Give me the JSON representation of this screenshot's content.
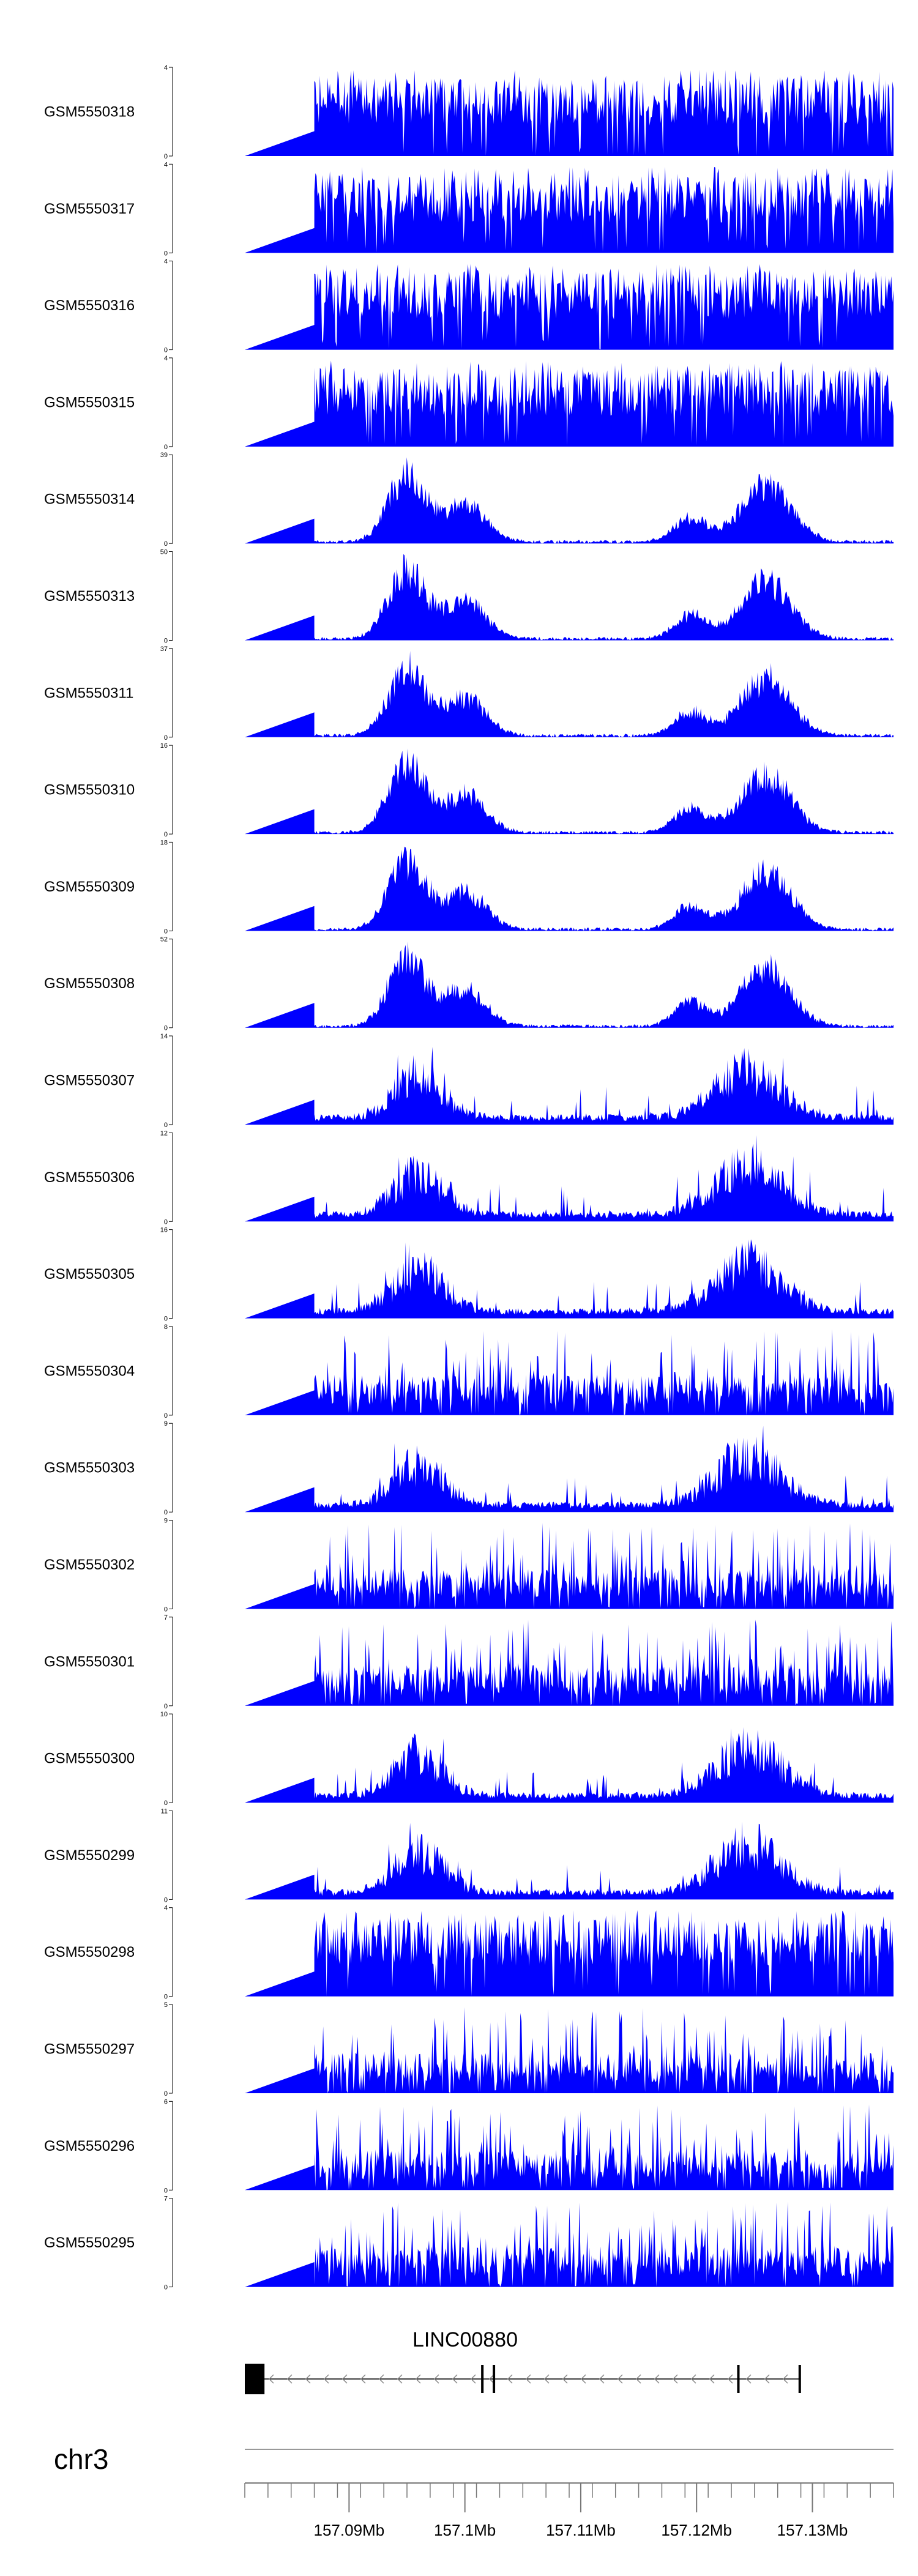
{
  "chart_data": {
    "type": "area",
    "color": "#0000ff",
    "x_range_bp": [
      157081000,
      157137000
    ],
    "signal_start_bp": 157087000,
    "tracks": [
      {
        "name": "GSM5550318",
        "ymax": 4,
        "profile": "uniform"
      },
      {
        "name": "GSM5550317",
        "ymax": 4,
        "profile": "uniform"
      },
      {
        "name": "GSM5550316",
        "ymax": 4,
        "profile": "uniform"
      },
      {
        "name": "GSM5550315",
        "ymax": 4,
        "profile": "uniform"
      },
      {
        "name": "GSM5550314",
        "ymax": 39,
        "profile": "peaks"
      },
      {
        "name": "GSM5550313",
        "ymax": 50,
        "profile": "peaks"
      },
      {
        "name": "GSM5550311",
        "ymax": 37,
        "profile": "peaks"
      },
      {
        "name": "GSM5550310",
        "ymax": 16,
        "profile": "peaks"
      },
      {
        "name": "GSM5550309",
        "ymax": 18,
        "profile": "peaks"
      },
      {
        "name": "GSM5550308",
        "ymax": 52,
        "profile": "peaks"
      },
      {
        "name": "GSM5550307",
        "ymax": 14,
        "profile": "mixed"
      },
      {
        "name": "GSM5550306",
        "ymax": 12,
        "profile": "mixed"
      },
      {
        "name": "GSM5550305",
        "ymax": 16,
        "profile": "mixed"
      },
      {
        "name": "GSM5550304",
        "ymax": 8,
        "profile": "spiky"
      },
      {
        "name": "GSM5550303",
        "ymax": 9,
        "profile": "mixed"
      },
      {
        "name": "GSM5550302",
        "ymax": 9,
        "profile": "spiky"
      },
      {
        "name": "GSM5550301",
        "ymax": 7,
        "profile": "spiky"
      },
      {
        "name": "GSM5550300",
        "ymax": 10,
        "profile": "mixed"
      },
      {
        "name": "GSM5550299",
        "ymax": 11,
        "profile": "mixed"
      },
      {
        "name": "GSM5550298",
        "ymax": 4,
        "profile": "uniform"
      },
      {
        "name": "GSM5550297",
        "ymax": 5,
        "profile": "spiky"
      },
      {
        "name": "GSM5550296",
        "ymax": 6,
        "profile": "spiky"
      },
      {
        "name": "GSM5550295",
        "ymax": 7,
        "profile": "spiky"
      }
    ],
    "gene": {
      "name": "LINC00880",
      "strand": "-",
      "start_bp": 157081000,
      "end_bp": 157129000,
      "exons": [
        {
          "start_bp": 157081000,
          "end_bp": 157082700
        },
        {
          "start_bp": 157101400,
          "end_bp": 157101600
        },
        {
          "start_bp": 157102400,
          "end_bp": 157102600
        },
        {
          "start_bp": 157123500,
          "end_bp": 157123700
        },
        {
          "start_bp": 157128800,
          "end_bp": 157129000
        }
      ]
    },
    "chromosome": "chr3",
    "x_ticks": [
      {
        "bp": 157090000,
        "label": "157.09Mb"
      },
      {
        "bp": 157100000,
        "label": "157.1Mb"
      },
      {
        "bp": 157110000,
        "label": "157.11Mb"
      },
      {
        "bp": 157120000,
        "label": "157.12Mb"
      },
      {
        "bp": 157130000,
        "label": "157.13Mb"
      }
    ],
    "minor_tick_step_bp": 2000
  }
}
